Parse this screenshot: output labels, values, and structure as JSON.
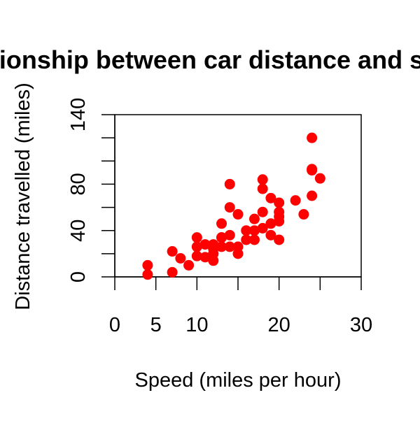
{
  "chart_data": {
    "type": "scatter",
    "title": "Relationship between car distance and speed",
    "xlabel": "Speed (miles per hour)",
    "ylabel": "Distance travelled (miles)",
    "xlim": [
      0,
      30
    ],
    "ylim": [
      0,
      140
    ],
    "x_ticks": [
      "0",
      "5",
      "10",
      "20",
      "30"
    ],
    "y_ticks": [
      "0",
      "40",
      "80",
      "140"
    ],
    "grid": false,
    "point_color": "#ff0000",
    "points": [
      {
        "x": 4,
        "y": 2
      },
      {
        "x": 4,
        "y": 10
      },
      {
        "x": 7,
        "y": 4
      },
      {
        "x": 7,
        "y": 22
      },
      {
        "x": 8,
        "y": 16
      },
      {
        "x": 9,
        "y": 10
      },
      {
        "x": 10,
        "y": 18
      },
      {
        "x": 10,
        "y": 26
      },
      {
        "x": 10,
        "y": 34
      },
      {
        "x": 11,
        "y": 17
      },
      {
        "x": 11,
        "y": 28
      },
      {
        "x": 12,
        "y": 14
      },
      {
        "x": 12,
        "y": 20
      },
      {
        "x": 12,
        "y": 24
      },
      {
        "x": 12,
        "y": 28
      },
      {
        "x": 13,
        "y": 26
      },
      {
        "x": 13,
        "y": 34
      },
      {
        "x": 13,
        "y": 34
      },
      {
        "x": 13,
        "y": 46
      },
      {
        "x": 14,
        "y": 26
      },
      {
        "x": 14,
        "y": 36
      },
      {
        "x": 14,
        "y": 60
      },
      {
        "x": 14,
        "y": 80
      },
      {
        "x": 15,
        "y": 20
      },
      {
        "x": 15,
        "y": 26
      },
      {
        "x": 15,
        "y": 54
      },
      {
        "x": 16,
        "y": 32
      },
      {
        "x": 16,
        "y": 40
      },
      {
        "x": 17,
        "y": 32
      },
      {
        "x": 17,
        "y": 40
      },
      {
        "x": 17,
        "y": 50
      },
      {
        "x": 18,
        "y": 42
      },
      {
        "x": 18,
        "y": 56
      },
      {
        "x": 18,
        "y": 76
      },
      {
        "x": 18,
        "y": 84
      },
      {
        "x": 19,
        "y": 36
      },
      {
        "x": 19,
        "y": 46
      },
      {
        "x": 19,
        "y": 68
      },
      {
        "x": 20,
        "y": 32
      },
      {
        "x": 20,
        "y": 48
      },
      {
        "x": 20,
        "y": 52
      },
      {
        "x": 20,
        "y": 56
      },
      {
        "x": 20,
        "y": 64
      },
      {
        "x": 22,
        "y": 66
      },
      {
        "x": 23,
        "y": 54
      },
      {
        "x": 24,
        "y": 70
      },
      {
        "x": 24,
        "y": 92
      },
      {
        "x": 24,
        "y": 93
      },
      {
        "x": 24,
        "y": 120
      },
      {
        "x": 25,
        "y": 85
      }
    ]
  }
}
